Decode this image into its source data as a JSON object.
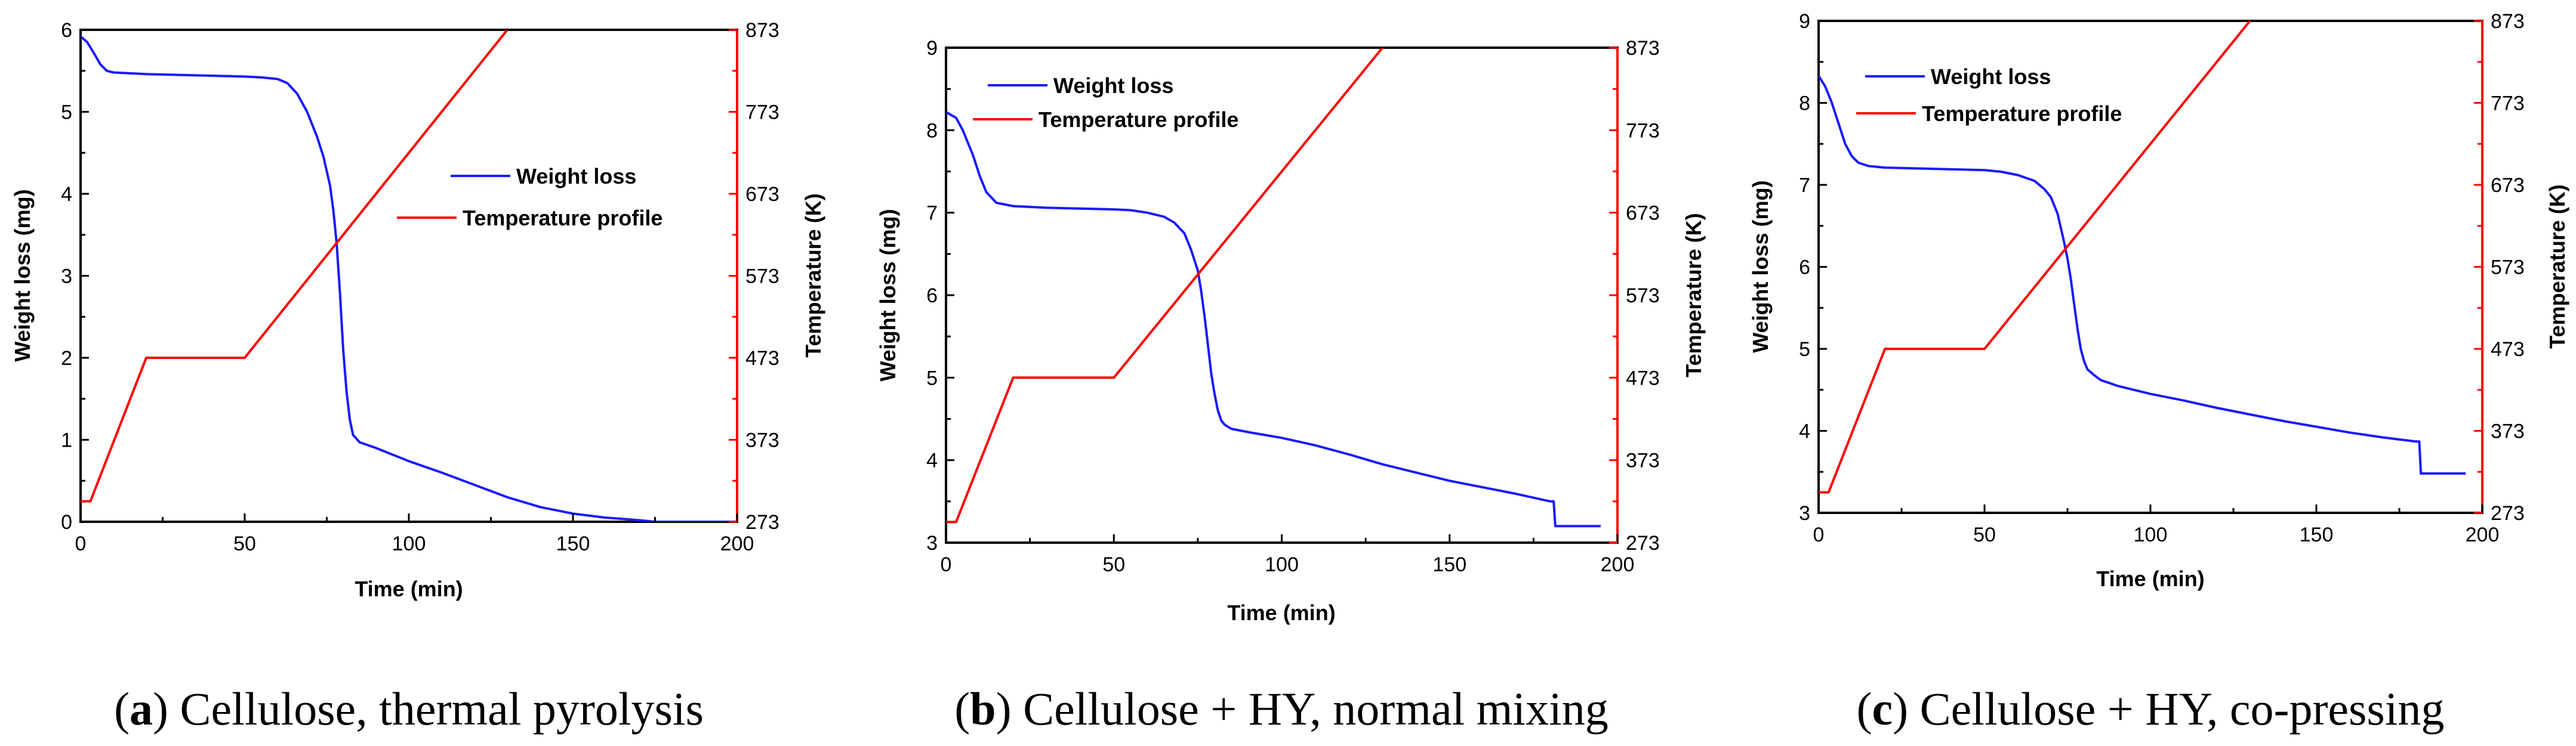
{
  "colors": {
    "weight": "#1a1aff",
    "temperature": "#ff0000",
    "axis": "#000000",
    "right_axis": "#ff0000"
  },
  "chart_data": [
    {
      "id": "a",
      "type": "line",
      "caption_letter": "a",
      "caption_text": "Cellulose, thermal pyrolysis",
      "xlabel": "Time (min)",
      "ylabel": "Weight loss (mg)",
      "y2label": "Temperature (K)",
      "xlim": [
        0,
        200
      ],
      "ylim": [
        0,
        6
      ],
      "y2lim": [
        273,
        873
      ],
      "xticks": [
        0,
        50,
        100,
        150,
        200
      ],
      "yticks": [
        0,
        1,
        2,
        3,
        4,
        5,
        6
      ],
      "y2ticks": [
        273,
        373,
        473,
        573,
        673,
        773,
        873
      ],
      "legend": [
        "Weight loss",
        "Temperature profile"
      ],
      "legend_position": "center-right",
      "series": [
        {
          "name": "Weight loss",
          "axis": "left",
          "x": [
            0,
            2,
            4,
            6,
            8,
            10,
            15,
            20,
            30,
            40,
            50,
            55,
            60,
            63,
            66,
            69,
            72,
            74,
            76,
            77,
            78,
            79,
            80,
            81,
            82,
            83,
            85,
            90,
            100,
            110,
            120,
            130,
            140,
            150,
            160,
            170,
            175,
            200
          ],
          "y": [
            5.92,
            5.85,
            5.72,
            5.58,
            5.5,
            5.48,
            5.47,
            5.46,
            5.45,
            5.44,
            5.43,
            5.42,
            5.4,
            5.35,
            5.22,
            5.0,
            4.7,
            4.45,
            4.1,
            3.8,
            3.4,
            2.8,
            2.1,
            1.6,
            1.25,
            1.06,
            0.97,
            0.9,
            0.74,
            0.6,
            0.45,
            0.3,
            0.18,
            0.1,
            0.05,
            0.02,
            0.0,
            0.0
          ]
        },
        {
          "name": "Temperature profile",
          "axis": "right",
          "x": [
            0,
            3,
            20,
            50,
            130
          ],
          "y": [
            298,
            298,
            473,
            473,
            873
          ]
        }
      ]
    },
    {
      "id": "b",
      "type": "line",
      "caption_letter": "b",
      "caption_text": "Cellulose + HY, normal mixing",
      "xlabel": "Time (min)",
      "ylabel": "Weight loss (mg)",
      "y2label": "Temperature (K)",
      "xlim": [
        0,
        200
      ],
      "ylim": [
        3,
        9
      ],
      "y2lim": [
        273,
        873
      ],
      "xticks": [
        0,
        50,
        100,
        150,
        200
      ],
      "yticks": [
        3,
        4,
        5,
        6,
        7,
        8,
        9
      ],
      "y2ticks": [
        273,
        373,
        473,
        573,
        673,
        773,
        873
      ],
      "legend": [
        "Weight loss",
        "Temperature profile"
      ],
      "legend_position": "top-left",
      "series": [
        {
          "name": "Weight loss",
          "axis": "left",
          "x": [
            0,
            3,
            5,
            8,
            10,
            12,
            15,
            20,
            30,
            40,
            50,
            55,
            60,
            65,
            68,
            71,
            73,
            75,
            76,
            77,
            78,
            79,
            80,
            81,
            82,
            83,
            85,
            90,
            100,
            110,
            120,
            130,
            140,
            150,
            160,
            170,
            180,
            181,
            181.5,
            195
          ],
          "y": [
            8.22,
            8.15,
            8.0,
            7.7,
            7.45,
            7.25,
            7.12,
            7.08,
            7.06,
            7.05,
            7.04,
            7.03,
            7.0,
            6.95,
            6.88,
            6.75,
            6.55,
            6.3,
            6.05,
            5.75,
            5.4,
            5.05,
            4.8,
            4.6,
            4.48,
            4.43,
            4.38,
            4.34,
            4.27,
            4.18,
            4.07,
            3.95,
            3.85,
            3.75,
            3.67,
            3.59,
            3.5,
            3.5,
            3.2,
            3.2
          ]
        },
        {
          "name": "Temperature profile",
          "axis": "right",
          "x": [
            0,
            3,
            20,
            50,
            130
          ],
          "y": [
            298,
            298,
            473,
            473,
            873
          ]
        }
      ]
    },
    {
      "id": "c",
      "type": "line",
      "caption_letter": "c",
      "caption_text": "Cellulose + HY, co-pressing",
      "xlabel": "Time (min)",
      "ylabel": "Weight loss (mg)",
      "y2label": "Temperature (K)",
      "xlim": [
        0,
        200
      ],
      "ylim": [
        3,
        9
      ],
      "y2lim": [
        273,
        873
      ],
      "xticks": [
        0,
        50,
        100,
        150,
        200
      ],
      "yticks": [
        3,
        4,
        5,
        6,
        7,
        8,
        9
      ],
      "y2ticks": [
        273,
        373,
        473,
        573,
        673,
        773,
        873
      ],
      "legend": [
        "Weight loss",
        "Temperature profile"
      ],
      "legend_position": "top-left",
      "series": [
        {
          "name": "Weight loss",
          "axis": "left",
          "x": [
            0,
            2,
            4,
            6,
            8,
            10,
            12,
            15,
            20,
            30,
            40,
            50,
            55,
            60,
            65,
            68,
            70,
            72,
            74,
            75,
            76,
            77,
            78,
            79,
            80,
            81,
            83,
            85,
            90,
            100,
            110,
            120,
            130,
            140,
            150,
            160,
            170,
            180,
            181,
            181.5,
            195
          ],
          "y": [
            8.33,
            8.2,
            8.0,
            7.75,
            7.5,
            7.35,
            7.27,
            7.23,
            7.21,
            7.2,
            7.19,
            7.18,
            7.16,
            7.12,
            7.05,
            6.95,
            6.85,
            6.65,
            6.3,
            6.1,
            5.85,
            5.55,
            5.25,
            5.0,
            4.85,
            4.75,
            4.68,
            4.62,
            4.55,
            4.45,
            4.37,
            4.28,
            4.2,
            4.12,
            4.05,
            3.98,
            3.92,
            3.87,
            3.87,
            3.48,
            3.48
          ]
        },
        {
          "name": "Temperature profile",
          "axis": "right",
          "x": [
            0,
            3,
            20,
            50,
            130
          ],
          "y": [
            298,
            298,
            473,
            473,
            873
          ]
        }
      ]
    }
  ]
}
